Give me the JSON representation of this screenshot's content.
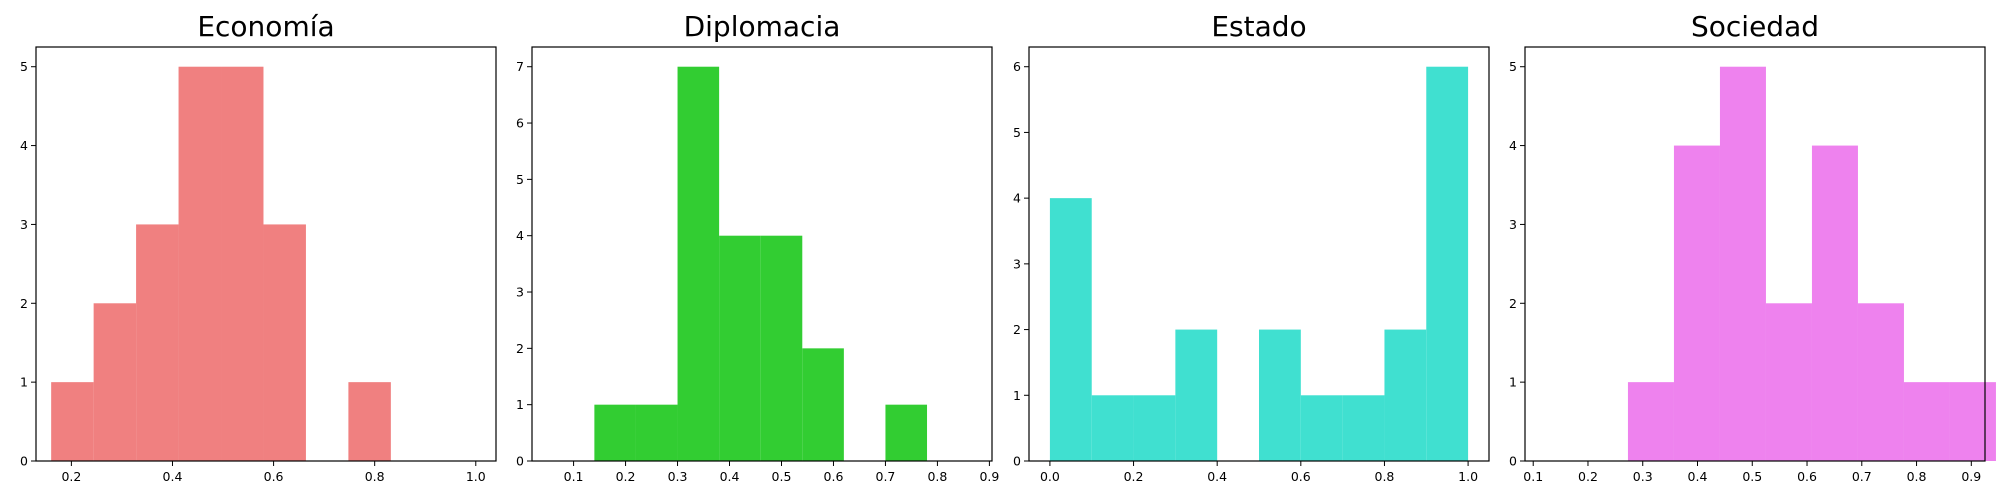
{
  "chart_data": [
    {
      "type": "bar",
      "subtype": "histogram",
      "title": "Economía",
      "color": "#F08080",
      "xlim": [
        0.13,
        1.04
      ],
      "ylim": [
        0,
        5.25
      ],
      "x_ticks": [
        "0.2",
        "0.4",
        "0.6",
        "0.8",
        "1.0"
      ],
      "y_ticks": [
        "0",
        "1",
        "2",
        "3",
        "4",
        "5"
      ],
      "bins": [
        {
          "x0": 0.16,
          "x1": 0.244,
          "value": 1
        },
        {
          "x0": 0.244,
          "x1": 0.328,
          "value": 2
        },
        {
          "x0": 0.328,
          "x1": 0.412,
          "value": 3
        },
        {
          "x0": 0.412,
          "x1": 0.496,
          "value": 5
        },
        {
          "x0": 0.496,
          "x1": 0.58,
          "value": 5
        },
        {
          "x0": 0.58,
          "x1": 0.664,
          "value": 3
        },
        {
          "x0": 0.664,
          "x1": 0.748,
          "value": 0
        },
        {
          "x0": 0.748,
          "x1": 0.832,
          "value": 1
        },
        {
          "x0": 0.832,
          "x1": 0.916,
          "value": 0
        },
        {
          "x0": 0.916,
          "x1": 1.0,
          "value": 0
        }
      ]
    },
    {
      "type": "bar",
      "subtype": "histogram",
      "title": "Diplomacia",
      "color": "#32CD32",
      "xlim": [
        0.02,
        0.905
      ],
      "ylim": [
        0,
        7.35
      ],
      "x_ticks": [
        "0.1",
        "0.2",
        "0.3",
        "0.4",
        "0.5",
        "0.6",
        "0.7",
        "0.8",
        "0.9"
      ],
      "y_ticks": [
        "0",
        "1",
        "2",
        "3",
        "4",
        "5",
        "6",
        "7"
      ],
      "bins": [
        {
          "x0": 0.06,
          "x1": 0.14,
          "value": 0
        },
        {
          "x0": 0.14,
          "x1": 0.22,
          "value": 1
        },
        {
          "x0": 0.22,
          "x1": 0.3,
          "value": 1
        },
        {
          "x0": 0.3,
          "x1": 0.38,
          "value": 7
        },
        {
          "x0": 0.38,
          "x1": 0.46,
          "value": 4
        },
        {
          "x0": 0.46,
          "x1": 0.54,
          "value": 4
        },
        {
          "x0": 0.54,
          "x1": 0.62,
          "value": 2
        },
        {
          "x0": 0.62,
          "x1": 0.7,
          "value": 0
        },
        {
          "x0": 0.7,
          "x1": 0.78,
          "value": 1
        },
        {
          "x0": 0.78,
          "x1": 0.86,
          "value": 0
        }
      ]
    },
    {
      "type": "bar",
      "subtype": "histogram",
      "title": "Estado",
      "color": "#40E0D0",
      "xlim": [
        -0.05,
        1.05
      ],
      "ylim": [
        0,
        6.3
      ],
      "x_ticks": [
        "0.0",
        "0.2",
        "0.4",
        "0.6",
        "0.8",
        "1.0"
      ],
      "y_ticks": [
        "0",
        "1",
        "2",
        "3",
        "4",
        "5",
        "6"
      ],
      "bins": [
        {
          "x0": 0.0,
          "x1": 0.1,
          "value": 4
        },
        {
          "x0": 0.1,
          "x1": 0.2,
          "value": 1
        },
        {
          "x0": 0.2,
          "x1": 0.3,
          "value": 1
        },
        {
          "x0": 0.3,
          "x1": 0.4,
          "value": 2
        },
        {
          "x0": 0.4,
          "x1": 0.5,
          "value": 0
        },
        {
          "x0": 0.5,
          "x1": 0.6,
          "value": 2
        },
        {
          "x0": 0.6,
          "x1": 0.7,
          "value": 1
        },
        {
          "x0": 0.7,
          "x1": 0.8,
          "value": 1
        },
        {
          "x0": 0.8,
          "x1": 0.9,
          "value": 2
        },
        {
          "x0": 0.9,
          "x1": 1.0,
          "value": 6
        }
      ]
    },
    {
      "type": "bar",
      "subtype": "histogram",
      "title": "Sociedad",
      "color": "#EE82EE",
      "xlim": [
        0.085,
        0.925
      ],
      "ylim": [
        0,
        5.25
      ],
      "x_ticks": [
        "0.1",
        "0.2",
        "0.3",
        "0.4",
        "0.5",
        "0.6",
        "0.7",
        "0.8",
        "0.9"
      ],
      "y_ticks": [
        "0",
        "1",
        "2",
        "3",
        "4",
        "5"
      ],
      "bins": [
        {
          "x0": 0.105,
          "x1": 0.189,
          "value": 0
        },
        {
          "x0": 0.189,
          "x1": 0.273,
          "value": 0
        },
        {
          "x0": 0.273,
          "x1": 0.357,
          "value": 1
        },
        {
          "x0": 0.357,
          "x1": 0.441,
          "value": 4
        },
        {
          "x0": 0.441,
          "x1": 0.525,
          "value": 5
        },
        {
          "x0": 0.525,
          "x1": 0.609,
          "value": 2
        },
        {
          "x0": 0.609,
          "x1": 0.693,
          "value": 4
        },
        {
          "x0": 0.693,
          "x1": 0.777,
          "value": 2
        },
        {
          "x0": 0.777,
          "x1": 0.861,
          "value": 1
        },
        {
          "x0": 0.861,
          "x1": 0.945,
          "value": 1
        }
      ]
    }
  ]
}
